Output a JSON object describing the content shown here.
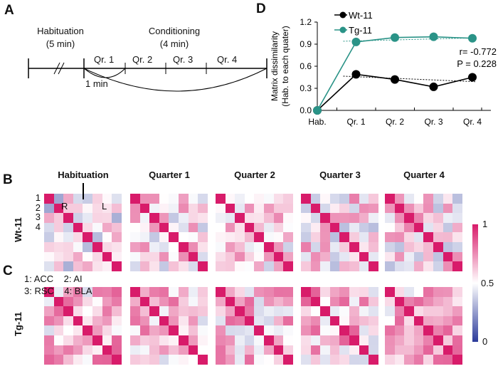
{
  "panels": {
    "a": "A",
    "b": "B",
    "c": "C",
    "d": "D"
  },
  "timeline": {
    "habituation": "Habituation",
    "hab_dur": "(5 min)",
    "conditioning": "Conditioning",
    "cond_dur": "(4 min)",
    "quarters": [
      "Qr. 1",
      "Qr. 2",
      "Qr. 3",
      "Qr. 4"
    ],
    "minute": "1 min"
  },
  "heatmaps": {
    "titles": [
      "Habituation",
      "Quarter 1",
      "Quarter 2",
      "Quarter 3",
      "Quarter 4"
    ],
    "rows": [
      "Wt-11",
      "Tg-11"
    ],
    "side_r": "R",
    "side_l": "L",
    "indices": [
      "1",
      "2",
      "3",
      "4"
    ],
    "legend_l1": "1: ACC    2: AI",
    "legend_l2": "3: RSC    4: BLA",
    "colorbar": {
      "max": "1",
      "mid": "0.5",
      "min": "0",
      "colors": [
        "#2b3a9a",
        "#ffffff",
        "#d81b6a"
      ]
    }
  },
  "chart_data": {
    "type": "line",
    "ylabel": "Matrix dissimilarity",
    "ylabel2": "(Hab. to each quater)",
    "categories": [
      "Hab.",
      "Qr. 1",
      "Qr. 2",
      "Qr. 3",
      "Qr. 4"
    ],
    "ylim": [
      0,
      1.2
    ],
    "yticks": [
      "0.0",
      "0.3",
      "0.6",
      "0.9",
      "1.2"
    ],
    "series": [
      {
        "name": "Wt-11",
        "color": "#000000",
        "values": [
          0,
          0.49,
          0.42,
          0.32,
          0.45
        ]
      },
      {
        "name": "Tg-11",
        "color": "#2a9387",
        "values": [
          0,
          0.93,
          0.99,
          1.0,
          0.98
        ]
      }
    ],
    "stats": {
      "r": "r= -0.772",
      "p": "P = 0.228"
    }
  }
}
